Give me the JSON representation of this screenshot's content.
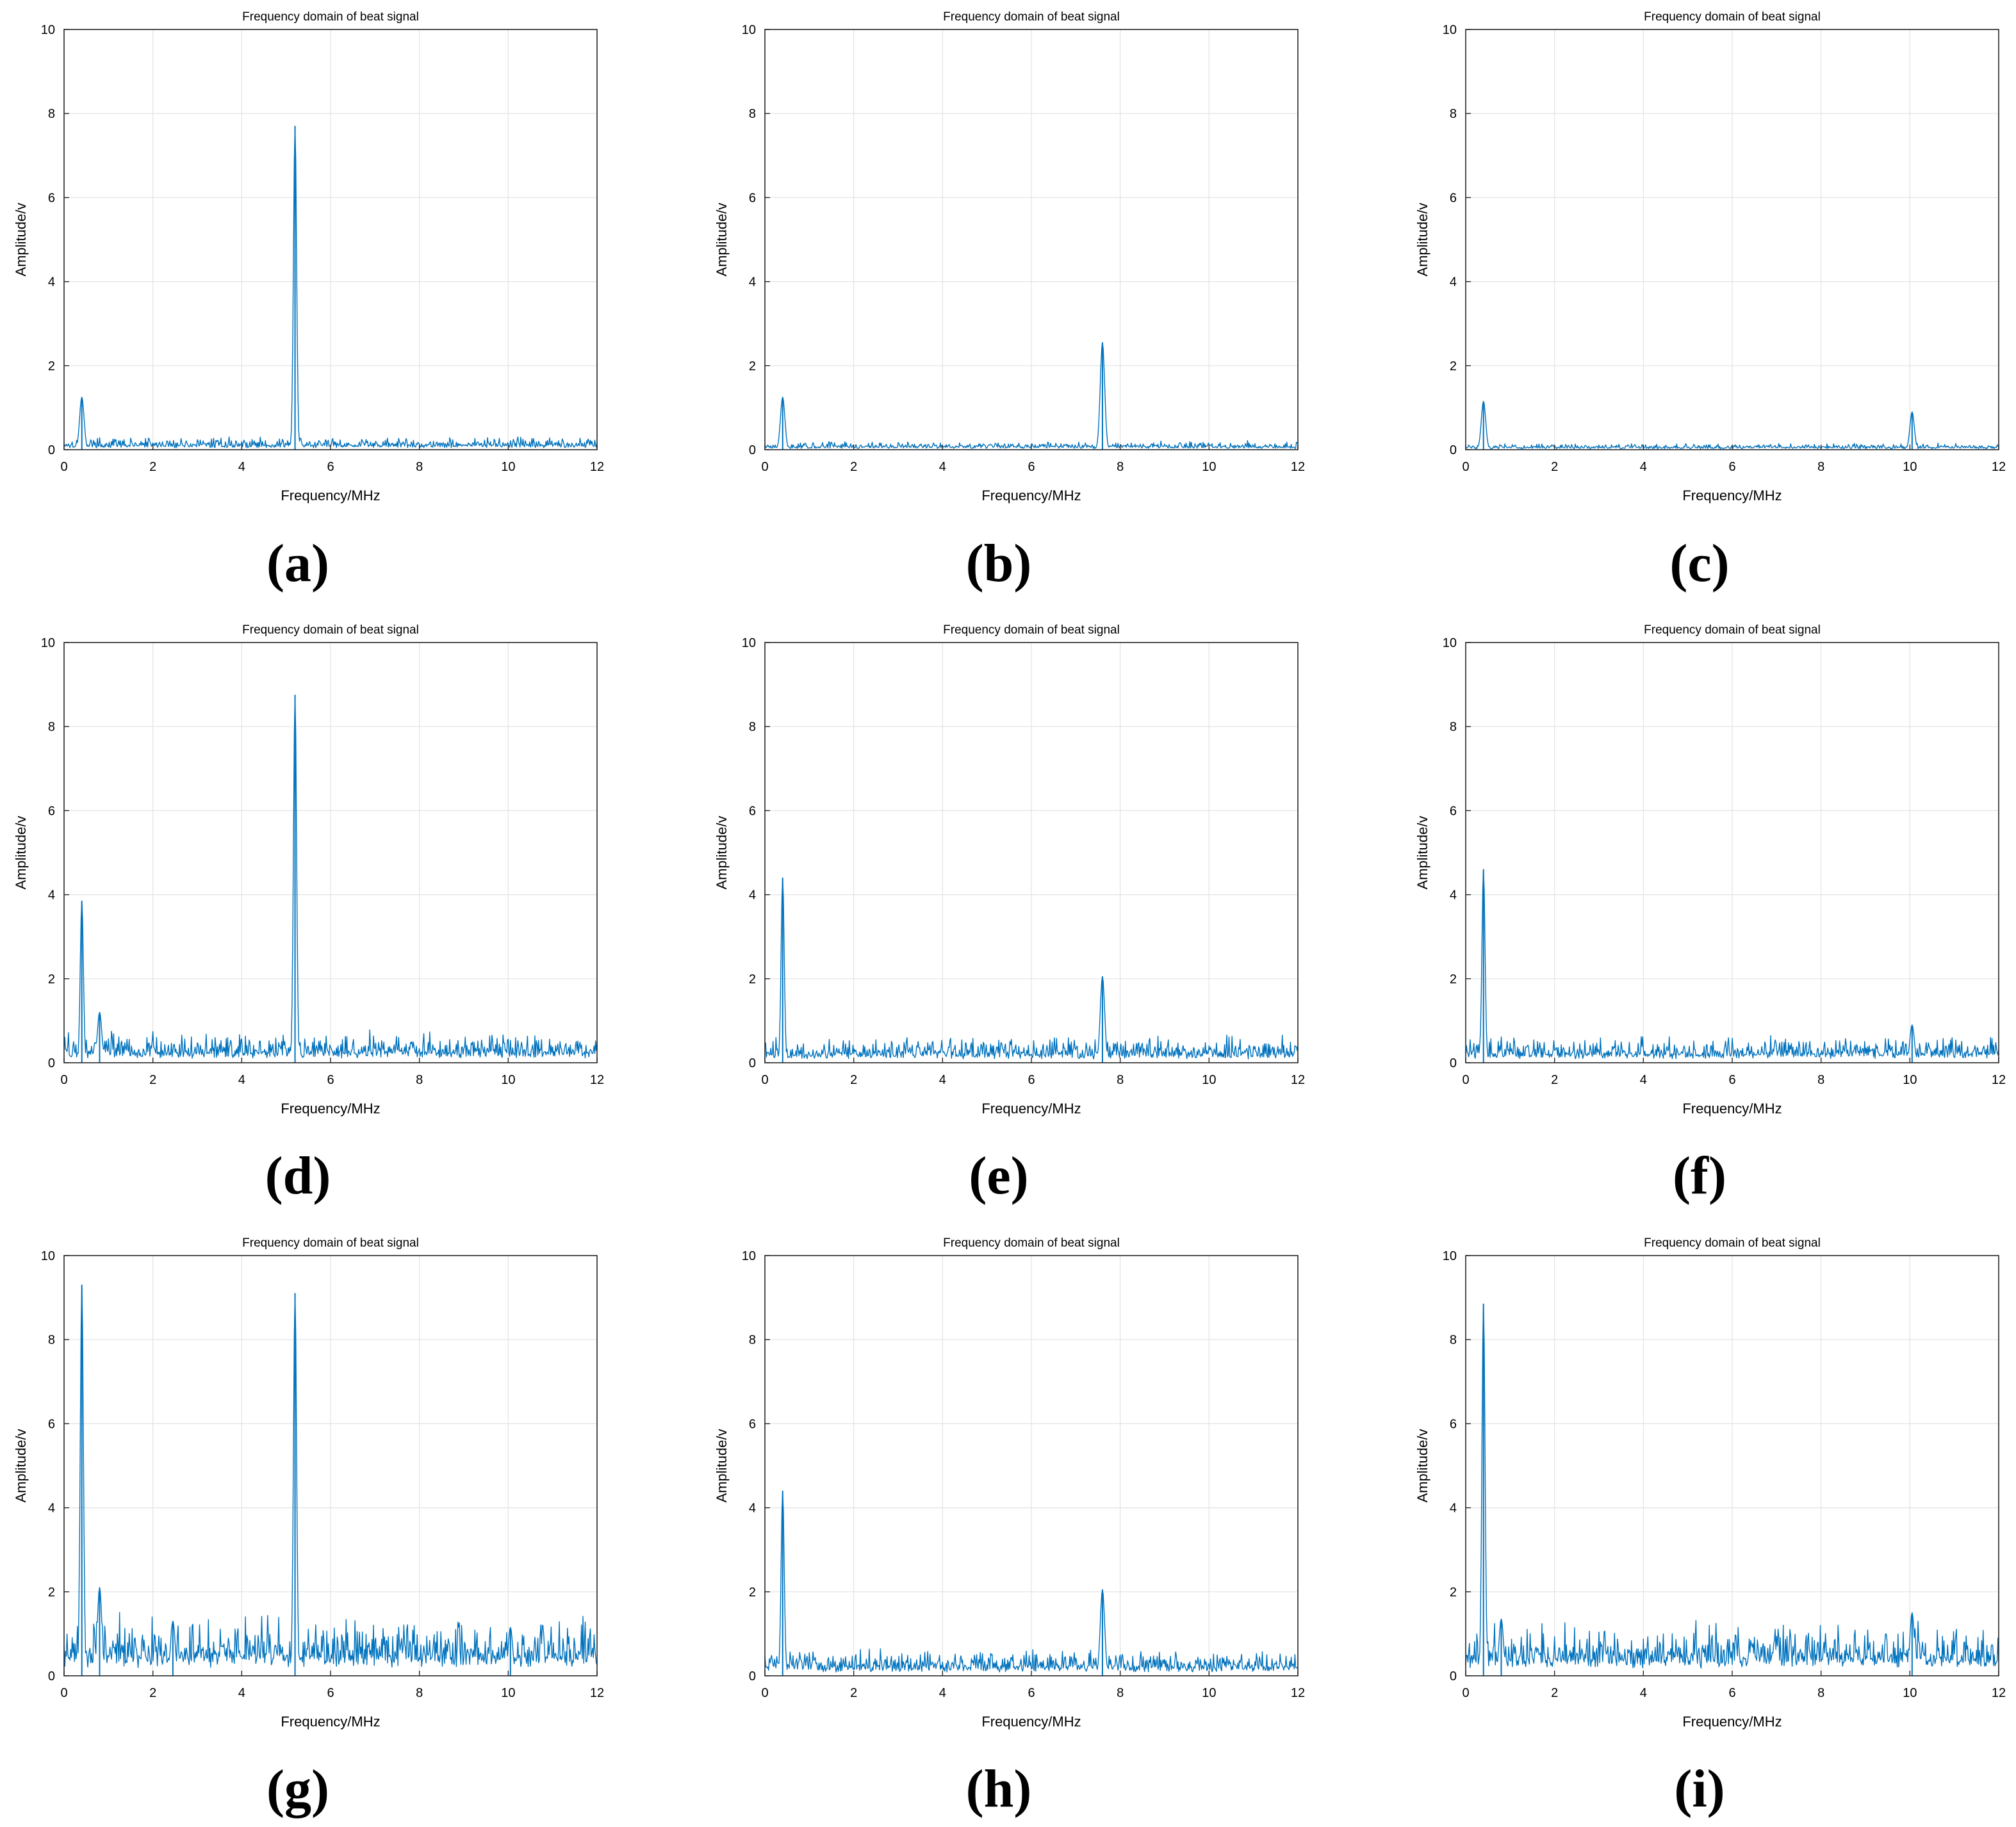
{
  "figure": {
    "panel_labels": [
      "(a)",
      "(b)",
      "(c)",
      "(d)",
      "(e)",
      "(f)",
      "(g)",
      "(h)",
      "(i)"
    ]
  },
  "chart_data": [
    {
      "panel": "(a)",
      "type": "line",
      "title": "Frequency domain of beat signal",
      "xlabel": "Frequency/MHz",
      "ylabel": "Amplitude/v",
      "xlim": [
        0,
        12
      ],
      "ylim": [
        0,
        10
      ],
      "xticks": [
        0,
        2,
        4,
        6,
        8,
        10,
        12
      ],
      "yticks": [
        0,
        2,
        4,
        6,
        8,
        10
      ],
      "grid": true,
      "color": "#0072BD",
      "noise_level": 0.12,
      "peaks": [
        {
          "x": 0.4,
          "y": 1.25
        },
        {
          "x": 5.2,
          "y": 7.7
        }
      ]
    },
    {
      "panel": "(b)",
      "type": "line",
      "title": "Frequency domain of beat signal",
      "xlabel": "Frequency/MHz",
      "ylabel": "Amplitude/v",
      "xlim": [
        0,
        12
      ],
      "ylim": [
        0,
        10
      ],
      "xticks": [
        0,
        2,
        4,
        6,
        8,
        10,
        12
      ],
      "yticks": [
        0,
        2,
        4,
        6,
        8,
        10
      ],
      "grid": true,
      "color": "#0072BD",
      "noise_level": 0.08,
      "peaks": [
        {
          "x": 0.4,
          "y": 1.25
        },
        {
          "x": 7.6,
          "y": 2.55
        }
      ]
    },
    {
      "panel": "(c)",
      "type": "line",
      "title": "Frequency domain of beat signal",
      "xlabel": "Frequency/MHz",
      "ylabel": "Amplitude/v",
      "xlim": [
        0,
        12
      ],
      "ylim": [
        0,
        10
      ],
      "xticks": [
        0,
        2,
        4,
        6,
        8,
        10,
        12
      ],
      "yticks": [
        0,
        2,
        4,
        6,
        8,
        10
      ],
      "grid": true,
      "color": "#0072BD",
      "noise_level": 0.06,
      "peaks": [
        {
          "x": 0.4,
          "y": 1.15
        },
        {
          "x": 10.05,
          "y": 0.9
        }
      ]
    },
    {
      "panel": "(d)",
      "type": "line",
      "title": "Frequency domain of beat signal",
      "xlabel": "Frequency/MHz",
      "ylabel": "Amplitude/v",
      "xlim": [
        0,
        12
      ],
      "ylim": [
        0,
        10
      ],
      "xticks": [
        0,
        2,
        4,
        6,
        8,
        10,
        12
      ],
      "yticks": [
        0,
        2,
        4,
        6,
        8,
        10
      ],
      "grid": true,
      "color": "#0072BD",
      "noise_level": 0.3,
      "peaks": [
        {
          "x": 0.4,
          "y": 3.85
        },
        {
          "x": 0.8,
          "y": 1.2
        },
        {
          "x": 5.2,
          "y": 8.75
        }
      ]
    },
    {
      "panel": "(e)",
      "type": "line",
      "title": "Frequency domain of beat signal",
      "xlabel": "Frequency/MHz",
      "ylabel": "Amplitude/v",
      "xlim": [
        0,
        12
      ],
      "ylim": [
        0,
        10
      ],
      "xticks": [
        0,
        2,
        4,
        6,
        8,
        10,
        12
      ],
      "yticks": [
        0,
        2,
        4,
        6,
        8,
        10
      ],
      "grid": true,
      "color": "#0072BD",
      "noise_level": 0.25,
      "peaks": [
        {
          "x": 0.4,
          "y": 4.4
        },
        {
          "x": 7.6,
          "y": 2.05
        }
      ]
    },
    {
      "panel": "(f)",
      "type": "line",
      "title": "Frequency domain of beat signal",
      "xlabel": "Frequency/MHz",
      "ylabel": "Amplitude/v",
      "xlim": [
        0,
        12
      ],
      "ylim": [
        0,
        10
      ],
      "xticks": [
        0,
        2,
        4,
        6,
        8,
        10,
        12
      ],
      "yticks": [
        0,
        2,
        4,
        6,
        8,
        10
      ],
      "grid": true,
      "color": "#0072BD",
      "noise_level": 0.25,
      "peaks": [
        {
          "x": 0.4,
          "y": 4.6
        },
        {
          "x": 10.05,
          "y": 0.9
        }
      ]
    },
    {
      "panel": "(g)",
      "type": "line",
      "title": "Frequency domain of beat signal",
      "xlabel": "Frequency/MHz",
      "ylabel": "Amplitude/v",
      "xlim": [
        0,
        12
      ],
      "ylim": [
        0,
        10
      ],
      "xticks": [
        0,
        2,
        4,
        6,
        8,
        10,
        12
      ],
      "yticks": [
        0,
        2,
        4,
        6,
        8,
        10
      ],
      "grid": true,
      "color": "#0072BD",
      "noise_level": 0.55,
      "peaks": [
        {
          "x": 0.4,
          "y": 9.3
        },
        {
          "x": 0.8,
          "y": 2.1
        },
        {
          "x": 2.45,
          "y": 1.3
        },
        {
          "x": 5.2,
          "y": 9.1
        },
        {
          "x": 10.05,
          "y": 1.15
        }
      ]
    },
    {
      "panel": "(h)",
      "type": "line",
      "title": "Frequency domain of beat signal",
      "xlabel": "Frequency/MHz",
      "ylabel": "Amplitude/v",
      "xlim": [
        0,
        12
      ],
      "ylim": [
        0,
        10
      ],
      "xticks": [
        0,
        2,
        4,
        6,
        8,
        10,
        12
      ],
      "yticks": [
        0,
        2,
        4,
        6,
        8,
        10
      ],
      "grid": true,
      "color": "#0072BD",
      "noise_level": 0.25,
      "peaks": [
        {
          "x": 0.4,
          "y": 4.4
        },
        {
          "x": 7.6,
          "y": 2.05
        }
      ]
    },
    {
      "panel": "(i)",
      "type": "line",
      "title": "Frequency domain of beat signal",
      "xlabel": "Frequency/MHz",
      "ylabel": "Amplitude/v",
      "xlim": [
        0,
        12
      ],
      "ylim": [
        0,
        10
      ],
      "xticks": [
        0,
        2,
        4,
        6,
        8,
        10,
        12
      ],
      "yticks": [
        0,
        2,
        4,
        6,
        8,
        10
      ],
      "grid": true,
      "color": "#0072BD",
      "noise_level": 0.5,
      "peaks": [
        {
          "x": 0.4,
          "y": 8.85
        },
        {
          "x": 0.8,
          "y": 1.35
        },
        {
          "x": 10.05,
          "y": 1.5
        }
      ]
    }
  ]
}
